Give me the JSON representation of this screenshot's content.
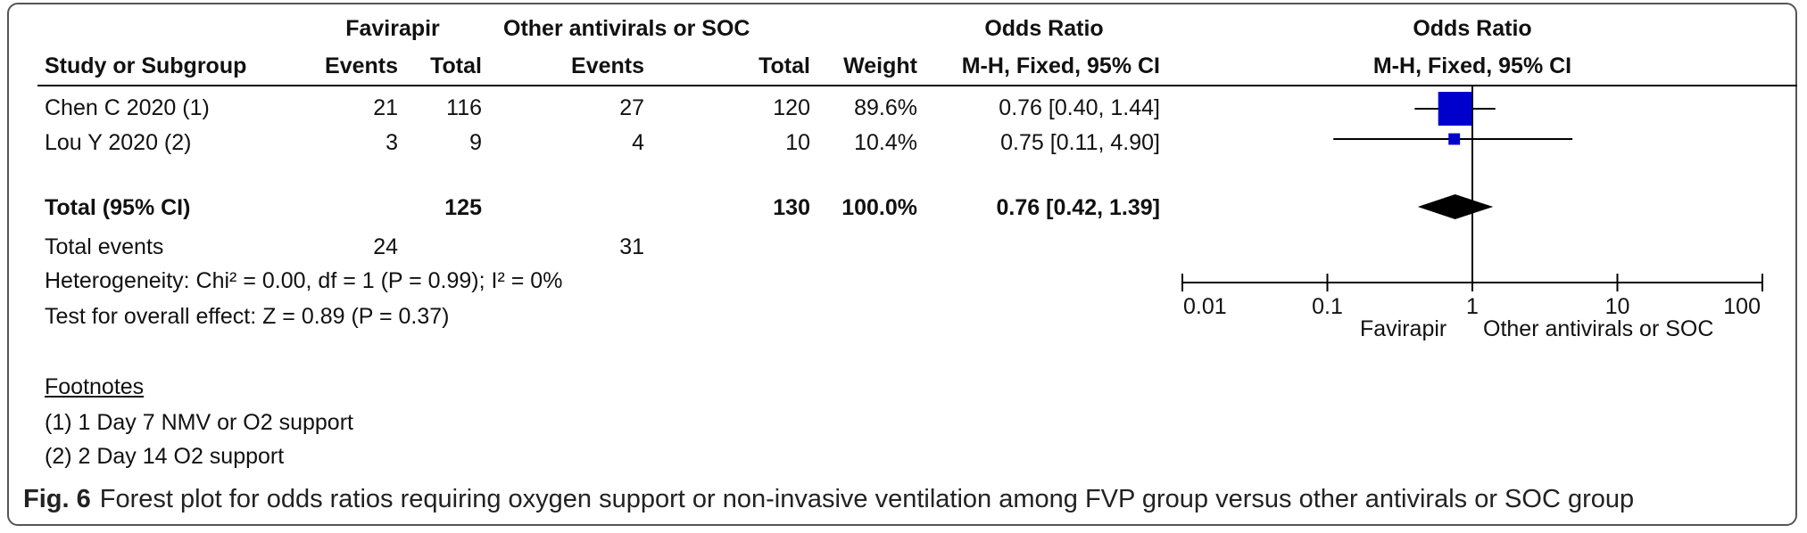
{
  "header": {
    "group1": "Favirapir",
    "group2": "Other antivirals or SOC",
    "or_title": "Odds Ratio",
    "col_study": "Study or Subgroup",
    "col_events1": "Events",
    "col_total1": "Total",
    "col_events2": "Events",
    "col_total2": "Total",
    "col_weight": "Weight",
    "col_method": "M-H, Fixed, 95% CI",
    "plot_title": "Odds Ratio",
    "plot_method": "M-H, Fixed, 95% CI"
  },
  "studies": [
    {
      "name": "Chen C 2020 (1)",
      "events1": "21",
      "total1": "116",
      "events2": "27",
      "total2": "120",
      "weight": "89.6%",
      "ci": "0.76 [0.40, 1.44]"
    },
    {
      "name": "Lou Y 2020 (2)",
      "events1": "3",
      "total1": "9",
      "events2": "4",
      "total2": "10",
      "weight": "10.4%",
      "ci": "0.75 [0.11, 4.90]"
    }
  ],
  "total": {
    "name": "Total (95% CI)",
    "total1": "125",
    "total2": "130",
    "weight": "100.0%",
    "ci": "0.76 [0.42, 1.39]"
  },
  "total_events": {
    "label": "Total events",
    "events1": "24",
    "events2": "31"
  },
  "heterogeneity": "Heterogeneity: Chi² = 0.00, df = 1 (P = 0.99); I² = 0%",
  "overall_effect": "Test for overall effect: Z = 0.89 (P = 0.37)",
  "footnotes": {
    "title": "Footnotes",
    "items": [
      "(1) 1 Day 7 NMV or O2 support",
      "(2) 2 Day 14 O2 support"
    ]
  },
  "axis": {
    "ticks": [
      "0.01",
      "0.1",
      "1",
      "10",
      "100"
    ],
    "favours_left": "Favirapir",
    "favours_right": "Other antivirals or SOC"
  },
  "caption": {
    "label": "Fig. 6",
    "text": "Forest plot for odds ratios requiring oxygen support or non-invasive ventilation among FVP group versus other antivirals or SOC group"
  },
  "colors": {
    "study_box": "#0000cc",
    "diamond": "#000000",
    "lines": "#000000"
  },
  "chart_data": {
    "type": "forest",
    "scale": "log",
    "xlim": [
      0.01,
      100
    ],
    "null_value": 1,
    "studies": [
      {
        "name": "Chen C 2020 (1)",
        "or": 0.76,
        "lower": 0.4,
        "upper": 1.44,
        "weight": 89.6
      },
      {
        "name": "Lou Y 2020 (2)",
        "or": 0.75,
        "lower": 0.11,
        "upper": 4.9,
        "weight": 10.4
      }
    ],
    "pooled": {
      "or": 0.76,
      "lower": 0.42,
      "upper": 1.39
    }
  }
}
